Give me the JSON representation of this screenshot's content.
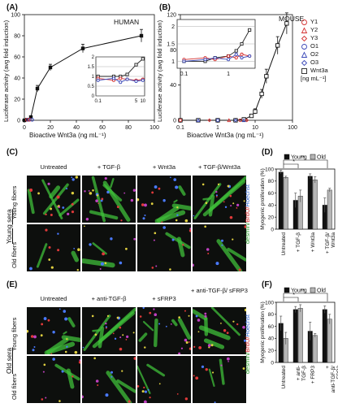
{
  "panels": {
    "A": {
      "label": "(A)",
      "tag": "HUMAN",
      "xlabel": "Bioactive Wnt3a (ng mL⁻¹)",
      "ylabel": "Luciferase activity (avg fold induction)"
    },
    "B": {
      "label": "(B)",
      "tag": "MOUSE",
      "xlabel": "Bioactive Wnt3a (ng mL⁻¹)",
      "ylabel": "Luciferase activity (avg fold induction)",
      "legend": [
        {
          "name": "Y1",
          "color": "#d43030",
          "marker": "circle"
        },
        {
          "name": "Y2",
          "color": "#d43030",
          "marker": "triangle"
        },
        {
          "name": "Y3",
          "color": "#d43030",
          "marker": "diamond"
        },
        {
          "name": "O1",
          "color": "#3a48b8",
          "marker": "circle"
        },
        {
          "name": "O2",
          "color": "#3a48b8",
          "marker": "triangle"
        },
        {
          "name": "O3",
          "color": "#3a48b8",
          "marker": "diamond"
        },
        {
          "name": "Wnt3a",
          "color": "#222222",
          "marker": "square"
        }
      ],
      "legend_unit": "[ng mL⁻¹]"
    },
    "C": {
      "label": "(C)",
      "cols": [
        "Untreated",
        "+ TGF-β",
        "+ Wnt3a",
        "+ TGF-β/Wnt3a"
      ],
      "rows": [
        "Young fibers",
        "Old fibers"
      ],
      "side": "Young sera",
      "stain": [
        {
          "text": "desmin/",
          "color": "#2a9a2a"
        },
        {
          "text": "BrdU/",
          "color": "#cc2222"
        },
        {
          "text": "Hoechst",
          "color": "#2a5fcc"
        }
      ]
    },
    "E": {
      "label": "(E)",
      "cols": [
        "Untreated",
        "+ anti-TGF-β",
        "+ sFRP3",
        "+ anti-TGF-β/ sFRP3"
      ],
      "rows": [
        "Young fibers",
        "Old fibers"
      ],
      "side": "Old sera",
      "stain": [
        {
          "text": "desmin/",
          "color": "#2a9a2a"
        },
        {
          "text": "BrdU/",
          "color": "#cc2222"
        },
        {
          "text": "Hoechst",
          "color": "#2a5fcc"
        }
      ]
    },
    "D": {
      "label": "(D)",
      "legend": [
        "Young",
        "Old"
      ],
      "sig": [
        "*",
        "**"
      ]
    },
    "F": {
      "label": "(F)",
      "legend": [
        "Young",
        "Old"
      ],
      "sig": [
        "*",
        "**"
      ]
    }
  },
  "chart_data": [
    {
      "type": "line",
      "panel": "A",
      "x": [
        0,
        2,
        5,
        10,
        20,
        45,
        90
      ],
      "y": [
        0,
        0.5,
        3,
        30,
        50,
        68,
        80
      ],
      "err": [
        0,
        0.3,
        1,
        3,
        3,
        4,
        6
      ],
      "xticks": [
        "0",
        "20",
        "40",
        "60",
        "80",
        "100"
      ],
      "yticks": [
        "0",
        "20",
        "40",
        "60",
        "80",
        "100"
      ],
      "xlim": [
        0,
        100
      ],
      "ylim": [
        0,
        100
      ],
      "inset": {
        "xticks": [
          "0.1",
          "5",
          "10"
        ],
        "yticks": [
          "0",
          "0.5",
          "1",
          "1.5",
          "2"
        ],
        "ylim": [
          0,
          2
        ],
        "series": [
          {
            "name": "Wnt3a",
            "color": "#222222",
            "x": [
              0.1,
              0.5,
              1,
              2,
              5,
              10
            ],
            "y": [
              1.0,
              1.0,
              1.0,
              1.1,
              1.6,
              1.9
            ]
          },
          {
            "name": "Y",
            "color": "#d43030",
            "x": [
              0.1,
              0.5,
              1,
              2,
              5,
              10
            ],
            "y": [
              0.9,
              0.8,
              0.9,
              0.85,
              0.8,
              0.85
            ]
          },
          {
            "name": "O",
            "color": "#3a48b8",
            "x": [
              0.1,
              0.5,
              1,
              2,
              5,
              10
            ],
            "y": [
              0.8,
              0.9,
              0.7,
              0.85,
              0.75,
              0.8
            ]
          }
        ]
      }
    },
    {
      "type": "line",
      "panel": "B",
      "x": [
        0.1,
        0.3,
        1,
        3,
        5,
        8,
        10,
        15,
        20,
        40,
        70
      ],
      "y": [
        0,
        0,
        0,
        0,
        1,
        5,
        10,
        30,
        50,
        85,
        110
      ],
      "err": [
        0,
        0,
        0,
        0,
        1,
        2,
        3,
        5,
        8,
        10,
        12
      ],
      "xscale": "log",
      "xticks": [
        "0.1",
        "1",
        "10",
        "100"
      ],
      "yticks": [
        "0",
        "40",
        "80",
        "120"
      ],
      "ylim": [
        0,
        120
      ],
      "inset": {
        "xticks": [
          "0.1",
          "1"
        ],
        "yticks": [
          "1",
          "1.5",
          "2"
        ],
        "ylim": [
          0.8,
          2.2
        ],
        "series": [
          {
            "name": "Wnt3a",
            "color": "#222222",
            "x": [
              0.1,
              0.3,
              0.5,
              1,
              1.5,
              2,
              3
            ],
            "y": [
              1.0,
              1.0,
              1.1,
              1.15,
              1.3,
              1.5,
              1.9
            ]
          },
          {
            "name": "Y",
            "color": "#d43030",
            "x": [
              0.1,
              0.3,
              0.5,
              1,
              1.5,
              2,
              3
            ],
            "y": [
              1.05,
              1.1,
              1.05,
              1.15,
              1.1,
              1.2,
              1.15
            ]
          },
          {
            "name": "O",
            "color": "#3a48b8",
            "x": [
              0.1,
              0.3,
              0.5,
              1,
              1.5,
              2,
              3
            ],
            "y": [
              1.0,
              1.05,
              1.1,
              1.05,
              1.2,
              1.1,
              1.15
            ]
          }
        ]
      }
    },
    {
      "type": "bar",
      "panel": "D",
      "ylabel": "Myogenic proliferation (%)",
      "ylim": [
        0,
        100
      ],
      "yticks": [
        "0",
        "20",
        "40",
        "60",
        "80",
        "100"
      ],
      "categories": [
        "Untreated",
        "+ TGF-β",
        "+ Wnt3a",
        "+ TGF-β/ Wnt3a"
      ],
      "series": [
        {
          "name": "Young",
          "color": "#111111",
          "values": [
            95,
            48,
            88,
            40
          ],
          "err": [
            3,
            12,
            4,
            12
          ]
        },
        {
          "name": "Old",
          "color": "#b5b5b5",
          "values": [
            86,
            55,
            82,
            65
          ],
          "err": [
            2,
            10,
            5,
            3
          ]
        }
      ]
    },
    {
      "type": "bar",
      "panel": "F",
      "ylabel": "Myogenic proliferation (%)",
      "ylim": [
        0,
        100
      ],
      "yticks": [
        "0",
        "20",
        "40",
        "60",
        "80",
        "100"
      ],
      "categories": [
        "Untreated",
        "+ anti- TGF-β",
        "+ FRP3",
        "+ anti-TGF-β/ FRP3"
      ],
      "series": [
        {
          "name": "Young",
          "color": "#111111",
          "values": [
            65,
            88,
            52,
            88
          ],
          "err": [
            12,
            5,
            15,
            6
          ]
        },
        {
          "name": "Old",
          "color": "#b5b5b5",
          "values": [
            40,
            90,
            45,
            72
          ],
          "err": [
            10,
            6,
            3,
            8
          ]
        }
      ]
    }
  ]
}
